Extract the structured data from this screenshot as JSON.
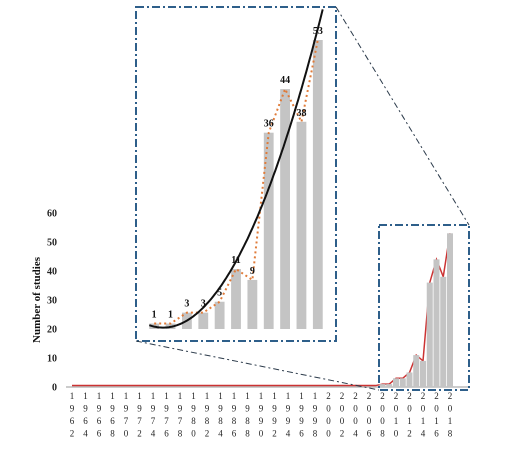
{
  "chart_data": {
    "type": "bar",
    "title": "",
    "xlabel": "",
    "ylabel": "Number of studies",
    "ylim": [
      0,
      60
    ],
    "yticks": [
      0,
      10,
      20,
      30,
      40,
      50,
      60
    ],
    "x_ticks": [
      "1962",
      "1964",
      "1966",
      "1968",
      "1970",
      "1972",
      "1974",
      "1976",
      "1978",
      "1980",
      "1982",
      "1984",
      "1986",
      "1988",
      "1990",
      "1992",
      "1994",
      "1996",
      "1998",
      "2000",
      "2002",
      "2004",
      "2006",
      "2008",
      "2010",
      "2012",
      "2014",
      "2016",
      "2018"
    ],
    "categories": [
      "2008",
      "2009",
      "2010",
      "2011",
      "2012",
      "2013",
      "2014",
      "2015",
      "2016",
      "2017",
      "2018"
    ],
    "values": [
      1,
      1,
      3,
      3,
      5,
      11,
      9,
      36,
      44,
      38,
      53
    ],
    "data_labels": [
      "1",
      "1",
      "3",
      "3",
      "5",
      "11",
      "9",
      "36",
      "44",
      "38",
      "53"
    ],
    "series_line_color": "#cc3333",
    "trend_line_color": "#111111",
    "dotted_line_color": "#e07b39",
    "bar_color": "#c4c4c4",
    "inset_border_color": "#2e5f8a",
    "grid": false,
    "legend": "none"
  }
}
